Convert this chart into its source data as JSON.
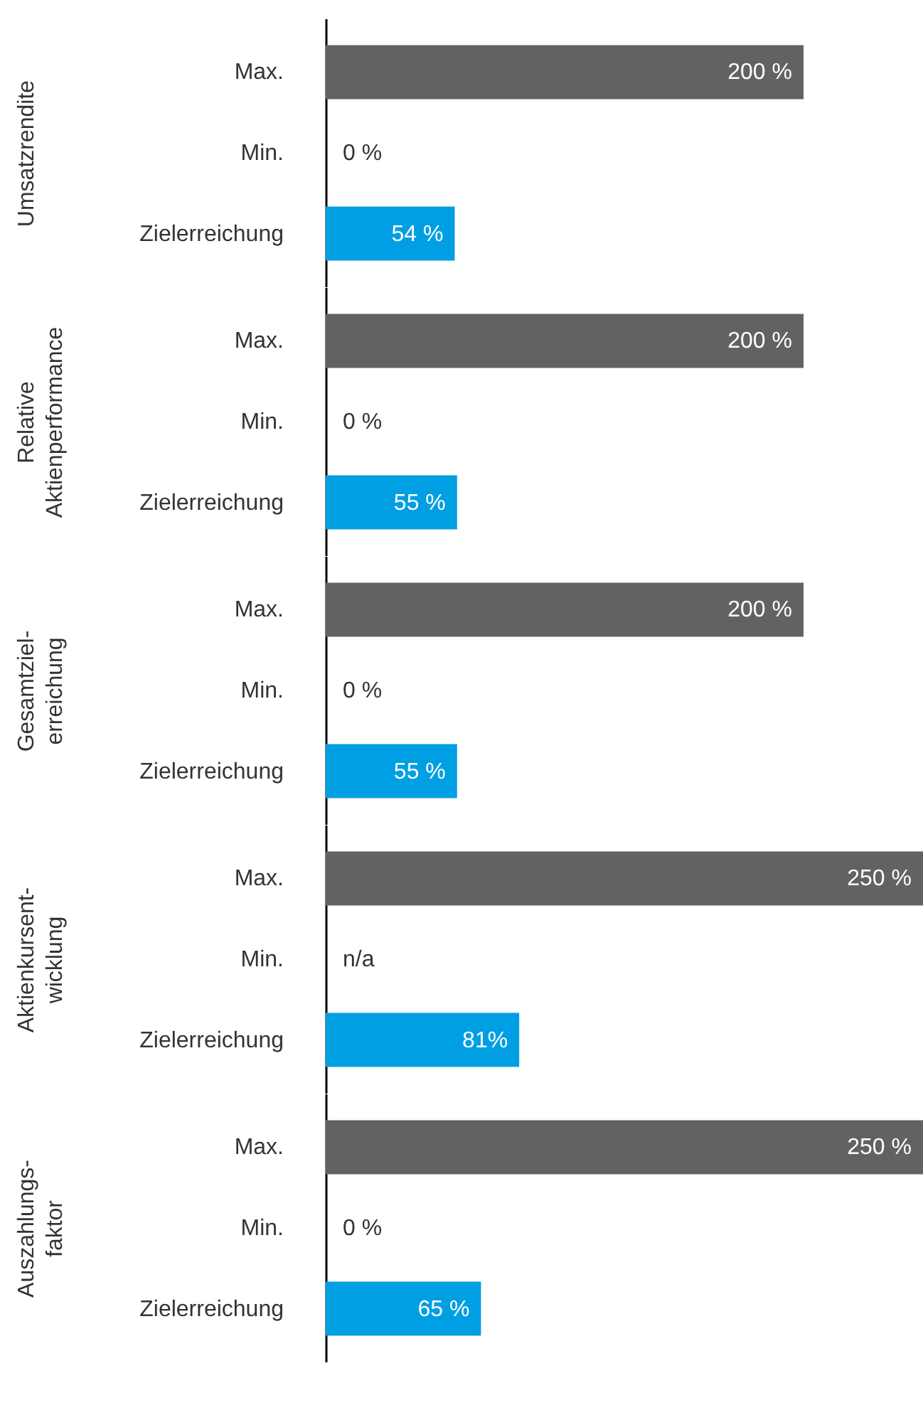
{
  "chart_data": [
    {
      "type": "bar",
      "orientation": "horizontal",
      "ylabel": "Umsatzrendite",
      "categories": [
        "Max.",
        "Min.",
        "Zielerreichung"
      ],
      "values": [
        200,
        0,
        54
      ],
      "colors": [
        "#616261",
        "#616261",
        "#009fe3"
      ],
      "value_labels": [
        "200 %",
        "0 %",
        "54 %"
      ],
      "xlim": [
        0,
        250
      ],
      "tick_labels": "y"
    },
    {
      "type": "bar",
      "orientation": "horizontal",
      "ylabel": "Relative\nAktienperformance",
      "categories": [
        "Max.",
        "Min.",
        "Zielerreichung"
      ],
      "values": [
        200,
        0,
        55
      ],
      "colors": [
        "#616261",
        "#616261",
        "#009fe3"
      ],
      "value_labels": [
        "200 %",
        "0 %",
        "55 %"
      ],
      "xlim": [
        0,
        250
      ],
      "tick_labels": "y"
    },
    {
      "type": "bar",
      "orientation": "horizontal",
      "ylabel": "Gesamtziel-\nerreichung",
      "categories": [
        "Max.",
        "Min.",
        "Zielerreichung"
      ],
      "values": [
        200,
        0,
        55
      ],
      "colors": [
        "#616261",
        "#616261",
        "#009fe3"
      ],
      "value_labels": [
        "200 %",
        "0 %",
        "55 %"
      ],
      "xlim": [
        0,
        250
      ],
      "tick_labels": "y"
    },
    {
      "type": "bar",
      "orientation": "horizontal",
      "ylabel": "Aktienkursent-\nwicklung",
      "categories": [
        "Max.",
        "Min.",
        "Zielerreichung"
      ],
      "values": [
        250,
        null,
        81
      ],
      "colors": [
        "#616261",
        "#616261",
        "#009fe3"
      ],
      "value_labels": [
        "250 %",
        "n/a",
        "81%"
      ],
      "xlim": [
        0,
        250
      ],
      "tick_labels": "y"
    },
    {
      "type": "bar",
      "orientation": "horizontal",
      "ylabel": "Auszahlungs-\nfaktor",
      "categories": [
        "Max.",
        "Min.",
        "Zielerreichung"
      ],
      "values": [
        250,
        0,
        65
      ],
      "colors": [
        "#616261",
        "#616261",
        "#009fe3"
      ],
      "value_labels": [
        "250 %",
        "0 %",
        "65 %"
      ],
      "xlim": [
        0,
        250
      ],
      "tick_labels": "y"
    }
  ]
}
